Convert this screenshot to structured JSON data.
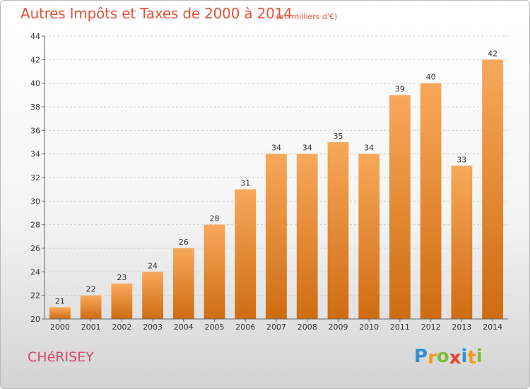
{
  "header": {
    "title": "Autres Impôts et Taxes de 2000 à 2014",
    "unit": "(en milliers d'€)"
  },
  "footer": {
    "commune": "CHéRISEY",
    "logo_letters": [
      "P",
      "r",
      "o",
      "x",
      "i",
      "t",
      "i"
    ],
    "logo_colors": [
      "#2f8fd8",
      "#f29a1d",
      "#7cbf3a",
      "#e8442e",
      "#2f8fd8",
      "#f29a1d",
      "#7cbf3a"
    ]
  },
  "chart_data": {
    "type": "bar",
    "categories": [
      "2000",
      "2001",
      "2002",
      "2003",
      "2004",
      "2005",
      "2006",
      "2007",
      "2008",
      "2009",
      "2010",
      "2011",
      "2012",
      "2013",
      "2014"
    ],
    "values": [
      21,
      22,
      23,
      24,
      26,
      28,
      31,
      34,
      34,
      35,
      34,
      39,
      40,
      33,
      42
    ],
    "title": "Autres Impôts et Taxes de 2000 à 2014",
    "ylim": [
      20,
      44
    ],
    "yticks": [
      20,
      22,
      24,
      26,
      28,
      30,
      32,
      34,
      36,
      38,
      40,
      42,
      44
    ],
    "grid": true,
    "bar_color": "#f0912f"
  }
}
